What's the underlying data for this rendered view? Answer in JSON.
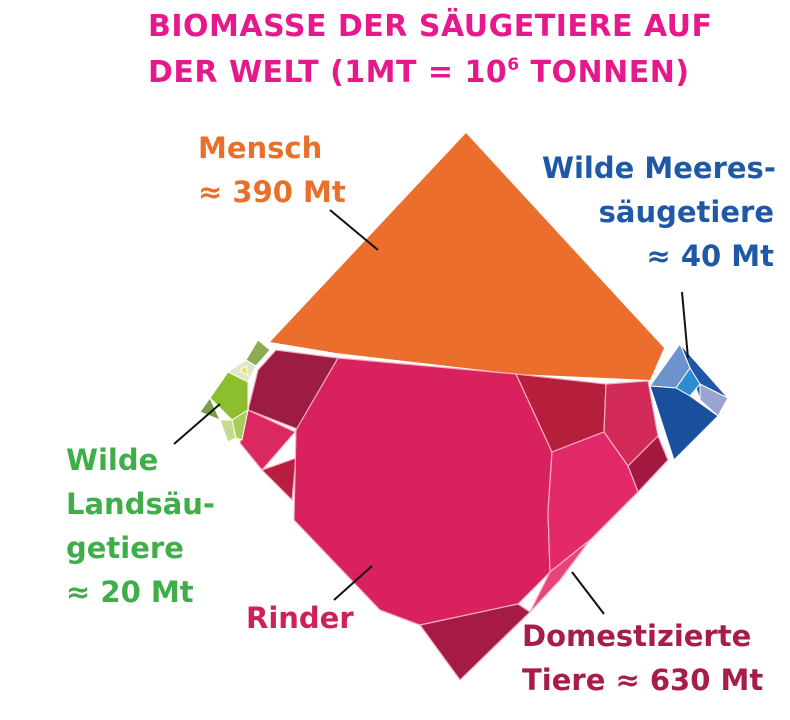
{
  "title": {
    "line1": "BIOMASSE DER SÄUGETIERE AUF",
    "line2_prefix": "DER WELT (1MT = 10",
    "line2_sup": "6",
    "line2_suffix": " TONNEN)"
  },
  "chart_data": {
    "type": "voronoi-treemap",
    "unit": "Mt",
    "categories": [
      {
        "name": "Mensch",
        "value_label": "≈ 390 Mt",
        "value": 390,
        "color": "#eb6e2c"
      },
      {
        "name": "Wilde Meeressäugetiere",
        "value_label": "≈ 40 Mt",
        "value": 40,
        "color": "#1f56a8"
      },
      {
        "name": "Wilde Landsäugetiere",
        "value_label": "≈ 20 Mt",
        "value": 20,
        "color": "#8fbd3a"
      },
      {
        "name": "Domestizierte Tiere",
        "value_label": "≈ 630 Mt",
        "value": 630,
        "color": "#d82361",
        "subcategories": [
          {
            "name": "Rinder"
          }
        ]
      }
    ]
  },
  "labels": {
    "mensch": [
      "Mensch",
      "≈ 390 Mt"
    ],
    "meer": [
      "Wilde Meeres-",
      "säugetiere",
      "≈ 40 Mt"
    ],
    "land": [
      "Wilde",
      "Landsäu-",
      "getiere",
      "≈ 20 Mt"
    ],
    "rinder": [
      "Rinder"
    ],
    "dom": [
      "Domestizierte",
      "Tiere ≈ 630 Mt"
    ]
  },
  "colors": {
    "title": "#e6198c",
    "mensch": "#eb6e2c",
    "meer": "#1f56a8",
    "land": "#8fbd3a",
    "rinder": "#d82361",
    "dom_dark": "#9e1a44"
  }
}
